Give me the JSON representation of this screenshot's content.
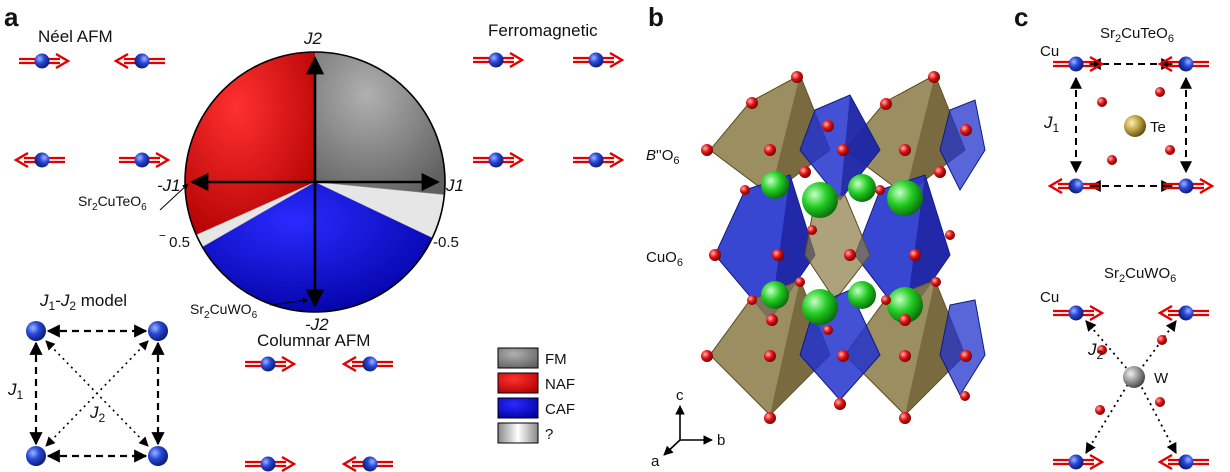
{
  "panels": {
    "a": "a",
    "b": "b",
    "c": "c"
  },
  "panel_a": {
    "neel_title": "Néel AFM",
    "ferro_title": "Ferromagnetic",
    "columnar_title": "Columnar AFM",
    "model_title": "J1-J2 model",
    "axis": {
      "j2": "J2",
      "minus_j2": "-J2",
      "j1": "J1",
      "minus_j1": "-J1",
      "half_left": "0.5",
      "half_right": "-0.5"
    },
    "compounds": {
      "te": "Sr2CuTeO6",
      "w": "Sr2CuWO6"
    },
    "model_labels": {
      "j1": "J1",
      "j2": "J2"
    }
  },
  "legend": [
    {
      "label": "FM",
      "color": "#808080"
    },
    {
      "label": "NAF",
      "color": "#e00000"
    },
    {
      "label": "CAF",
      "color": "#0000e0"
    },
    {
      "label": "?",
      "color": "#dddddd"
    }
  ],
  "panel_b": {
    "octa_b": "B''O6",
    "octa_cu": "CuO6",
    "axes": {
      "c": "c",
      "a": "a",
      "b": "b"
    }
  },
  "panel_c": {
    "te_title": "Sr2CuTeO6",
    "w_title": "Sr2CuWO6",
    "cu1": "Cu",
    "cu2": "Cu",
    "te": "Te",
    "w": "W",
    "j1": "J1",
    "j2": "J2"
  },
  "colors": {
    "spin_blue": "#1f3fd0",
    "arrow_red": "#e00000",
    "octa_b": "#8a7a45",
    "octa_cu": "#2233cc",
    "sr_green": "#22cc22",
    "oxygen_red": "#dd1111"
  }
}
